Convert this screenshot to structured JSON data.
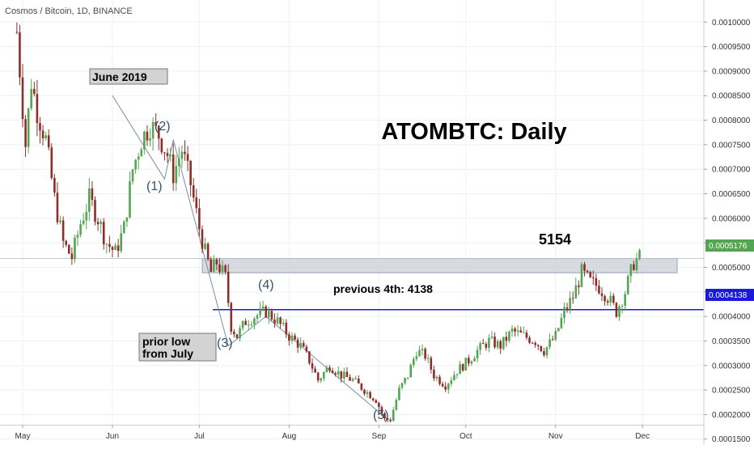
{
  "header": {
    "symbol_title": "Cosmos / Bitcoin, 1D, BINANCE"
  },
  "chart_data": {
    "type": "candlestick",
    "title": "ATOMBTC: Daily",
    "symbol": "Cosmos / Bitcoin",
    "interval": "1D",
    "exchange": "BINANCE",
    "x_ticks": [
      "May",
      "Jun",
      "Jul",
      "Aug",
      "Sep",
      "Oct",
      "Nov",
      "Dec"
    ],
    "y_ticks": [
      "0.0010000",
      "0.0009500",
      "0.0009000",
      "0.0008500",
      "0.0008000",
      "0.0007500",
      "0.0007000",
      "0.0006500",
      "0.0006000",
      "0.0005500",
      "0.0005000",
      "0.0004500",
      "0.0004000",
      "0.0003500",
      "0.0003000",
      "0.0002500",
      "0.0002000",
      "0.0001500"
    ],
    "ylim": [
      0.000138,
      0.001045
    ],
    "grid": true,
    "last_price": "0.0005176",
    "level_price": "0.0004138",
    "colors": {
      "up": "#53a552",
      "down": "#8e2e2a",
      "level_line": "#1a1adb",
      "zone_fill": "#d3d6de",
      "zone_stroke": "#8c96b0",
      "wave_text": "#34526b",
      "last_price_bg": "#53a552",
      "level_bg": "#1a1adb"
    },
    "annotations": {
      "june_label": "June 2019",
      "prior_low_line1": "prior low",
      "prior_low_line2": "from July",
      "previous_4th": "previous 4th: 4138",
      "resistance": "5154",
      "wave1": "(1)",
      "wave2": "(2)",
      "wave3": "(3)",
      "wave4": "(4)",
      "wave5": "(5)"
    },
    "series": [
      {
        "name": "price path",
        "points": [
          [
            "2019-04-29",
            0.00098
          ],
          [
            "2019-05-02",
            0.00075
          ],
          [
            "2019-05-04",
            0.00088
          ],
          [
            "2019-05-06",
            0.00082
          ],
          [
            "2019-05-09",
            0.00076
          ],
          [
            "2019-05-12",
            0.00064
          ],
          [
            "2019-05-15",
            0.00055
          ],
          [
            "2019-05-18",
            0.00052
          ],
          [
            "2019-05-21",
            0.00059
          ],
          [
            "2019-05-24",
            0.00064
          ],
          [
            "2019-05-27",
            0.0006
          ],
          [
            "2019-05-30",
            0.00055
          ],
          [
            "2019-06-02",
            0.00053
          ],
          [
            "2019-06-05",
            0.00058
          ],
          [
            "2019-06-08",
            0.0007
          ],
          [
            "2019-06-11",
            0.00076
          ],
          [
            "2019-06-14",
            0.00079
          ],
          [
            "2019-06-17",
            0.00077
          ],
          [
            "2019-06-20",
            0.00073
          ],
          [
            "2019-06-22",
            0.00069
          ],
          [
            "2019-06-25",
            0.00074
          ],
          [
            "2019-06-28",
            0.00067
          ],
          [
            "2019-07-01",
            0.00058
          ],
          [
            "2019-07-03",
            0.00053
          ],
          [
            "2019-07-05",
            0.00049
          ],
          [
            "2019-07-07",
            0.00051
          ],
          [
            "2019-07-10",
            0.00048
          ],
          [
            "2019-07-12",
            0.00038
          ],
          [
            "2019-07-14",
            0.00036
          ],
          [
            "2019-07-17",
            0.00039
          ],
          [
            "2019-07-20",
            0.0004
          ],
          [
            "2019-07-24",
            0.00041
          ],
          [
            "2019-07-28",
            0.00039
          ],
          [
            "2019-08-01",
            0.00036
          ],
          [
            "2019-08-05",
            0.00034
          ],
          [
            "2019-08-08",
            0.00031
          ],
          [
            "2019-08-11",
            0.00027
          ],
          [
            "2019-08-15",
            0.0003
          ],
          [
            "2019-08-19",
            0.00028
          ],
          [
            "2019-08-23",
            0.00027
          ],
          [
            "2019-08-27",
            0.00025
          ],
          [
            "2019-08-31",
            0.00023
          ],
          [
            "2019-09-03",
            0.00019
          ],
          [
            "2019-09-05",
            0.00019
          ],
          [
            "2019-09-08",
            0.00025
          ],
          [
            "2019-09-11",
            0.00028
          ],
          [
            "2019-09-14",
            0.00033
          ],
          [
            "2019-09-17",
            0.00032
          ],
          [
            "2019-09-20",
            0.00028
          ],
          [
            "2019-09-24",
            0.00026
          ],
          [
            "2019-09-28",
            0.00029
          ],
          [
            "2019-10-02",
            0.00031
          ],
          [
            "2019-10-05",
            0.00033
          ],
          [
            "2019-10-09",
            0.00035
          ],
          [
            "2019-10-13",
            0.00034
          ],
          [
            "2019-10-17",
            0.00037
          ],
          [
            "2019-10-21",
            0.00036
          ],
          [
            "2019-10-25",
            0.00035
          ],
          [
            "2019-10-28",
            0.00033
          ],
          [
            "2019-11-01",
            0.00036
          ],
          [
            "2019-11-04",
            0.00041
          ],
          [
            "2019-11-07",
            0.00044
          ],
          [
            "2019-11-10",
            0.00049
          ],
          [
            "2019-11-13",
            0.00047
          ],
          [
            "2019-11-16",
            0.00046
          ],
          [
            "2019-11-19",
            0.00044
          ],
          [
            "2019-11-22",
            0.00041
          ],
          [
            "2019-11-25",
            0.00045
          ],
          [
            "2019-11-28",
            0.00051
          ],
          [
            "2019-11-30",
            0.00052
          ]
        ]
      },
      {
        "name": "elliott wave path",
        "points": [
          [
            "2019-06-01",
            0.00085
          ],
          [
            "2019-06-19",
            0.00068
          ],
          [
            "2019-06-22",
            0.00076
          ],
          [
            "2019-07-11",
            0.00034
          ],
          [
            "2019-07-24",
            0.0004
          ],
          [
            "2019-09-04",
            0.00019
          ]
        ]
      }
    ]
  }
}
